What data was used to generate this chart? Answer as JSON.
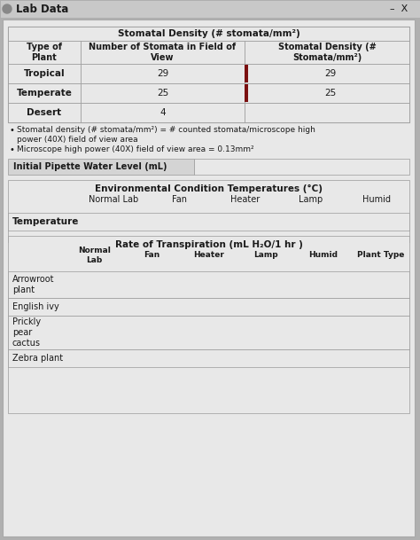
{
  "title": "Lab Data",
  "bg_color": "#b0b0b0",
  "panel_bg": "#e8e8e8",
  "cell_bg": "#e8e8e8",
  "title_bar_bg": "#c8c8c8",
  "pipette_bar_bg": "#d4d4d4",
  "table1_title": "Stomatal Density (# stomata/mm²)",
  "table1_col1": "Type of\nPlant",
  "table1_col2": "Number of Stomata in Field of\nView",
  "table1_col3": "Stomatal Density (#\nStomata/mm²)",
  "table1_rows": [
    [
      "Tropical",
      "29",
      "29"
    ],
    [
      "Temperate",
      "25",
      "25"
    ],
    [
      "Desert",
      "4",
      ""
    ]
  ],
  "bullet1a": "Stomatal density (# stomata/mm²) = # counted stomata/microscope high",
  "bullet1b": "power (40X) field of view area",
  "bullet2": "Microscope high power (40X) field of view area = 0.13mm²",
  "section2_title": "Initial Pipette Water Level (mL)",
  "table2_title": "Environmental Condition Temperatures (°C)",
  "table2_cols": [
    "Normal Lab",
    "Fan",
    "Heater",
    "Lamp",
    "Humid"
  ],
  "table2_row_label": "Temperature",
  "table3_title": "Rate of Transpiration (mL H₂O/1 hr )",
  "table3_col0": "Normal\nLab",
  "table3_cols": [
    "Fan",
    "Heater",
    "Lamp",
    "Humid",
    "Plant Type"
  ],
  "table3_rows": [
    "Arrowroot\nplant",
    "English ivy",
    "Prickly\npear\ncactus",
    "Zebra plant"
  ],
  "accent_color": "#7a1010",
  "edge_color": "#999999",
  "text_color": "#1a1a1a"
}
